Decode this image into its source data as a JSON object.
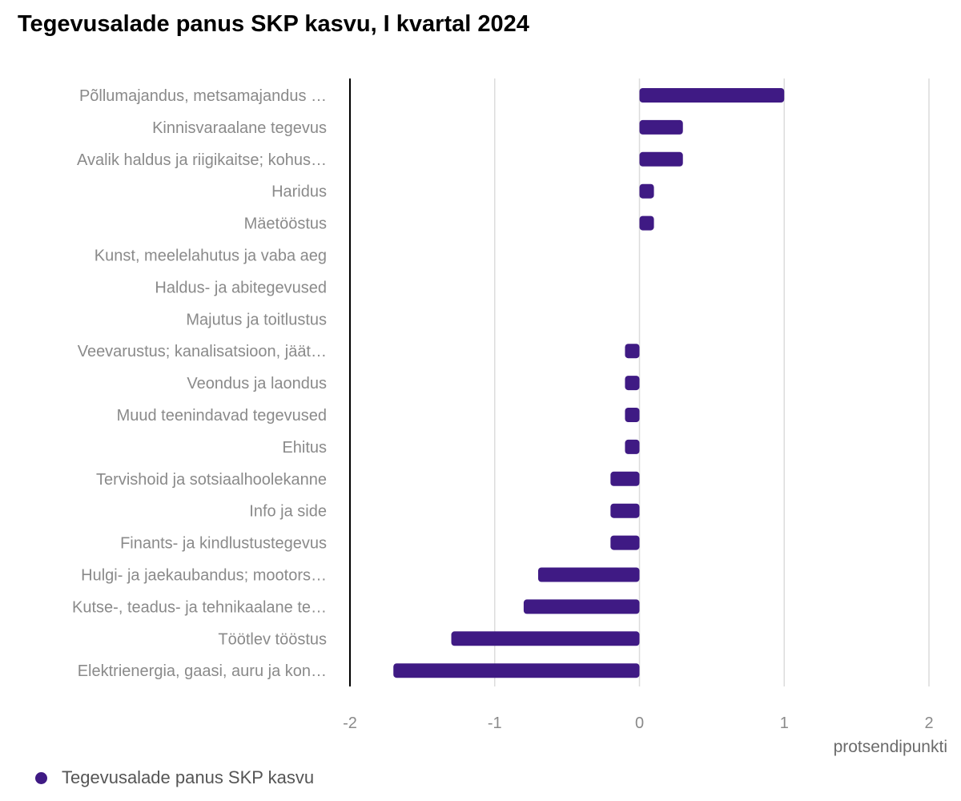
{
  "colors": {
    "series": "#3f1a84",
    "grid": "#dcdcdc",
    "axis": "#000000"
  },
  "chart_data": {
    "type": "bar",
    "orientation": "horizontal",
    "title": "Tegevusalade panus SKP kasvu, I kvartal 2024",
    "xlabel": "protsendipunkti",
    "ylabel": "",
    "xlim": [
      -2,
      2
    ],
    "xticks": [
      "-2",
      "-1",
      "0",
      "1",
      "2"
    ],
    "grid": true,
    "legend_position": "bottom-left",
    "categories": [
      "Põllumajandus, metsamajandus …",
      "Kinnisvaraalane tegevus",
      "Avalik haldus ja riigikaitse; kohus…",
      "Haridus",
      "Mäetööstus",
      "Kunst, meelelahutus ja vaba aeg",
      "Haldus- ja abitegevused",
      "Majutus ja toitlustus",
      "Veevarustus; kanalisatsioon, jäät…",
      "Veondus ja laondus",
      "Muud teenindavad tegevused",
      "Ehitus",
      "Tervishoid ja sotsiaalhoolekanne",
      "Info ja side",
      "Finants- ja kindlustustegevus",
      "Hulgi- ja jaekaubandus; mootors…",
      "Kutse-, teadus- ja tehnikaalane te…",
      "Töötlev tööstus",
      "Elektrienergia, gaasi, auru ja kon…"
    ],
    "series": [
      {
        "name": "Tegevusalade panus SKP kasvu",
        "values": [
          1.0,
          0.3,
          0.3,
          0.1,
          0.1,
          0,
          0,
          0,
          -0.1,
          -0.1,
          -0.1,
          -0.1,
          -0.2,
          -0.2,
          -0.2,
          -0.7,
          -0.8,
          -1.3,
          -1.7
        ]
      }
    ]
  }
}
